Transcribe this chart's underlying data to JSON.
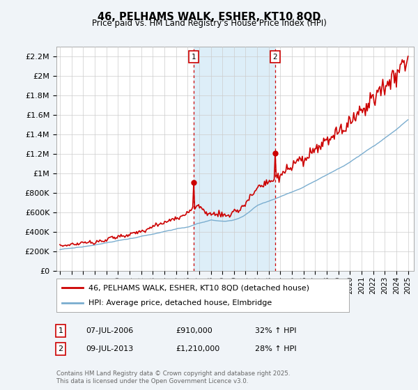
{
  "title": "46, PELHAMS WALK, ESHER, KT10 8QD",
  "subtitle": "Price paid vs. HM Land Registry's House Price Index (HPI)",
  "ylim": [
    0,
    2300000
  ],
  "yticks": [
    0,
    200000,
    400000,
    600000,
    800000,
    1000000,
    1200000,
    1400000,
    1600000,
    1800000,
    2000000,
    2200000
  ],
  "ytick_labels": [
    "£0",
    "£200K",
    "£400K",
    "£600K",
    "£800K",
    "£1M",
    "£1.2M",
    "£1.4M",
    "£1.6M",
    "£1.8M",
    "£2M",
    "£2.2M"
  ],
  "legend_line1": "46, PELHAMS WALK, ESHER, KT10 8QD (detached house)",
  "legend_line2": "HPI: Average price, detached house, Elmbridge",
  "red_color": "#cc0000",
  "blue_color": "#7aadcf",
  "shade_color": "#ddeef8",
  "purchase1_x": 2006.53,
  "purchase1_y": 910000,
  "purchase2_x": 2013.53,
  "purchase2_y": 1210000,
  "table_row1": [
    "1",
    "07-JUL-2006",
    "£910,000",
    "32% ↑ HPI"
  ],
  "table_row2": [
    "2",
    "09-JUL-2013",
    "£1,210,000",
    "28% ↑ HPI"
  ],
  "footer": "Contains HM Land Registry data © Crown copyright and database right 2025.\nThis data is licensed under the Open Government Licence v3.0.",
  "bg_color": "#f0f4f8",
  "plot_bg": "#ffffff",
  "xmin": 1994.7,
  "xmax": 2025.5
}
